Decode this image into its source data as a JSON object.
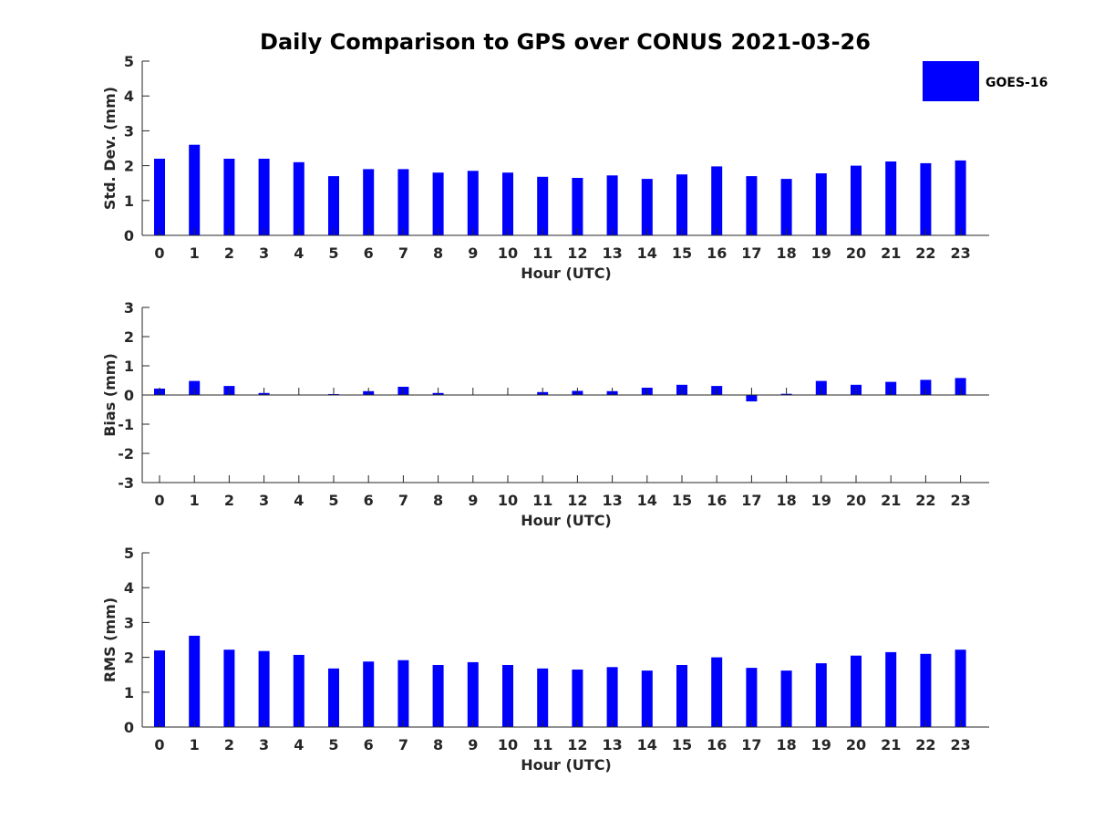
{
  "title": "Daily Comparison to GPS over CONUS 2021-03-26",
  "legend": {
    "label": "GOES-16",
    "color": "#0000ff",
    "placement": "top-right"
  },
  "chart_data": [
    {
      "type": "bar",
      "name": "std-dev",
      "ylabel": "Std. Dev. (mm)",
      "xlabel": "Hour (UTC)",
      "ylim": [
        0,
        5
      ],
      "yticks": [
        0,
        1,
        2,
        3,
        4,
        5
      ],
      "categories": [
        "0",
        "1",
        "2",
        "3",
        "4",
        "5",
        "6",
        "7",
        "8",
        "9",
        "10",
        "11",
        "12",
        "13",
        "14",
        "15",
        "16",
        "17",
        "18",
        "19",
        "20",
        "21",
        "22",
        "23"
      ],
      "series": [
        {
          "name": "GOES-16",
          "color": "#0000ff",
          "values": [
            2.2,
            2.6,
            2.2,
            2.2,
            2.1,
            1.7,
            1.9,
            1.9,
            1.8,
            1.85,
            1.8,
            1.68,
            1.65,
            1.72,
            1.62,
            1.75,
            1.98,
            1.7,
            1.62,
            1.78,
            2.0,
            2.12,
            2.07,
            2.15
          ]
        }
      ]
    },
    {
      "type": "bar",
      "name": "bias",
      "ylabel": "Bias (mm)",
      "xlabel": "Hour (UTC)",
      "ylim": [
        -3,
        3
      ],
      "yticks": [
        -3,
        -2,
        -1,
        0,
        1,
        2,
        3
      ],
      "categories": [
        "0",
        "1",
        "2",
        "3",
        "4",
        "5",
        "6",
        "7",
        "8",
        "9",
        "10",
        "11",
        "12",
        "13",
        "14",
        "15",
        "16",
        "17",
        "18",
        "19",
        "20",
        "21",
        "22",
        "23"
      ],
      "series": [
        {
          "name": "GOES-16",
          "color": "#0000ff",
          "values": [
            0.22,
            0.48,
            0.31,
            0.07,
            0.0,
            0.03,
            0.13,
            0.28,
            0.07,
            0.0,
            0.0,
            0.1,
            0.14,
            0.13,
            0.25,
            0.35,
            0.31,
            -0.22,
            0.04,
            0.48,
            0.35,
            0.45,
            0.52,
            0.58
          ]
        }
      ]
    },
    {
      "type": "bar",
      "name": "rms",
      "ylabel": "RMS (mm)",
      "xlabel": "Hour (UTC)",
      "ylim": [
        0,
        5
      ],
      "yticks": [
        0,
        1,
        2,
        3,
        4,
        5
      ],
      "categories": [
        "0",
        "1",
        "2",
        "3",
        "4",
        "5",
        "6",
        "7",
        "8",
        "9",
        "10",
        "11",
        "12",
        "13",
        "14",
        "15",
        "16",
        "17",
        "18",
        "19",
        "20",
        "21",
        "22",
        "23"
      ],
      "series": [
        {
          "name": "GOES-16",
          "color": "#0000ff",
          "values": [
            2.2,
            2.62,
            2.22,
            2.18,
            2.07,
            1.68,
            1.88,
            1.92,
            1.78,
            1.86,
            1.78,
            1.68,
            1.65,
            1.72,
            1.62,
            1.78,
            2.0,
            1.7,
            1.62,
            1.83,
            2.05,
            2.15,
            2.1,
            2.22
          ]
        }
      ]
    }
  ]
}
